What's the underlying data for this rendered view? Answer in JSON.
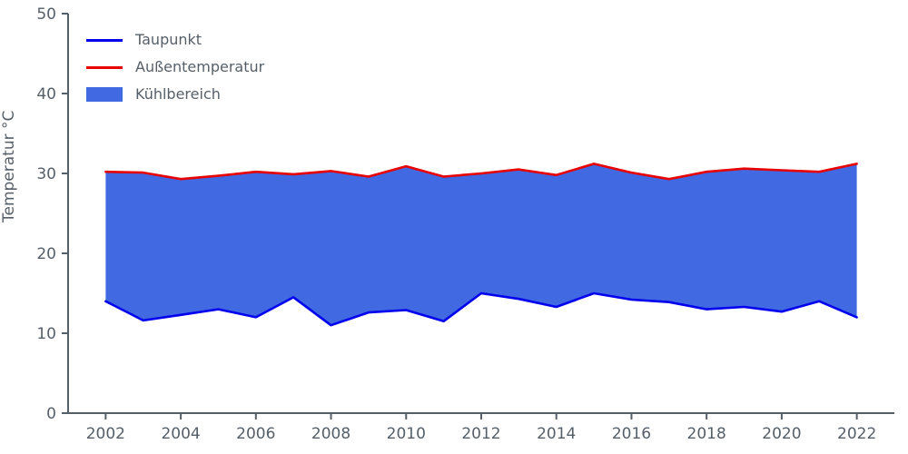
{
  "colors": {
    "axis": "#565f68",
    "text": "#565f68",
    "taupunkt_line": "#0000ee",
    "aussentemperatur_line": "#e80000",
    "fill": "#4169e1",
    "background": "#ffffff"
  },
  "ylabel": "Temperatur °C",
  "legend": {
    "taupunkt": "Taupunkt",
    "aussentemperatur": "Außentemperatur",
    "kuehlbereich": "Kühlbereich"
  },
  "chart_data": {
    "type": "area",
    "title": "",
    "xlabel": "",
    "ylabel": "Temperatur °C",
    "ylim": [
      0,
      50
    ],
    "xlim": [
      2001,
      2023
    ],
    "yticks": [
      0,
      10,
      20,
      30,
      40,
      50
    ],
    "xticks": [
      2002,
      2004,
      2006,
      2008,
      2010,
      2012,
      2014,
      2016,
      2018,
      2020,
      2022
    ],
    "grid": false,
    "legend_position": "upper left",
    "x": [
      2002,
      2003,
      2004,
      2005,
      2006,
      2007,
      2008,
      2009,
      2010,
      2011,
      2012,
      2013,
      2014,
      2015,
      2016,
      2017,
      2018,
      2019,
      2020,
      2021,
      2022
    ],
    "series": [
      {
        "name": "Taupunkt",
        "role": "lower-line",
        "color": "#0000ee",
        "values": [
          14.0,
          11.6,
          12.3,
          13.0,
          12.0,
          14.5,
          11.0,
          12.6,
          12.9,
          11.5,
          15.0,
          14.3,
          13.3,
          15.0,
          14.2,
          13.9,
          13.0,
          13.3,
          12.7,
          14.0,
          12.0
        ]
      },
      {
        "name": "Außentemperatur",
        "role": "upper-line",
        "color": "#e80000",
        "values": [
          30.2,
          30.1,
          29.3,
          29.7,
          30.2,
          29.9,
          30.3,
          29.6,
          30.9,
          29.6,
          30.0,
          30.5,
          29.8,
          31.2,
          30.1,
          29.3,
          30.2,
          30.6,
          30.4,
          30.2,
          31.2
        ]
      }
    ],
    "fill_between": {
      "name": "Kühlbereich",
      "color": "#4169e1",
      "between": [
        "Taupunkt",
        "Außentemperatur"
      ]
    }
  }
}
